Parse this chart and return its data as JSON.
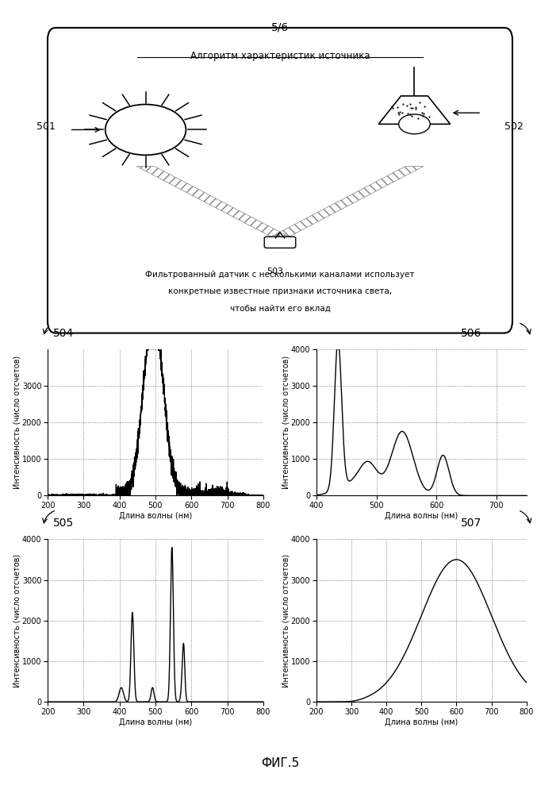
{
  "page_label": "5/6",
  "fig_label": "ФИГ.5",
  "diagram_title": "Алгоритм характеристик источника",
  "diagram_text": "Фильтрованный датчик с несколькими каналами использует",
  "diagram_text2": "конкретные известные признаки источника света,",
  "diagram_text3": "чтобы найти его вклад",
  "ylabel": "Интенсивность (число отсчетов)",
  "xlabel": "Длина волны (нм)"
}
